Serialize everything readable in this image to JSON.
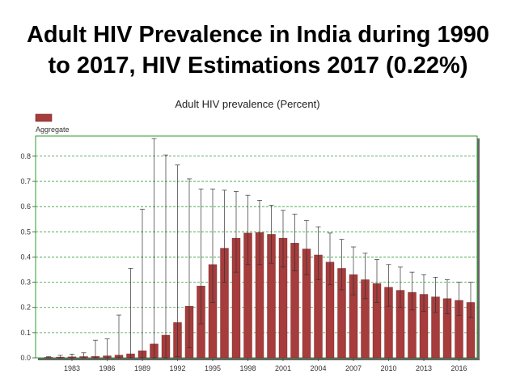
{
  "slide": {
    "title_line1": "Adult HIV Prevalence in India during 1990",
    "title_line2": "to 2017, HIV Estimations 2017 (0.22%)"
  },
  "chart_data": {
    "type": "bar",
    "title": "Adult HIV prevalence (Percent)",
    "xlabel": "",
    "ylabel": "",
    "ylim": [
      0,
      0.88
    ],
    "y_ticks": [
      0.0,
      0.1,
      0.2,
      0.3,
      0.4,
      0.5,
      0.6,
      0.7,
      0.8
    ],
    "x_tick_labels": [
      "1983",
      "1986",
      "1989",
      "1992",
      "1995",
      "1998",
      "2001",
      "2004",
      "2007",
      "2010",
      "2013",
      "2016"
    ],
    "grid": true,
    "error_bars": true,
    "legend": {
      "placement": "top-left",
      "entries": [
        "Aggregate"
      ]
    },
    "colors": {
      "bar": "#A63C3C",
      "grid": "#3CA03C",
      "frame": "#2E9A2E",
      "shadow": "#666666"
    },
    "categories": [
      "1981",
      "1982",
      "1983",
      "1984",
      "1985",
      "1986",
      "1987",
      "1988",
      "1989",
      "1990",
      "1991",
      "1992",
      "1993",
      "1994",
      "1995",
      "1996",
      "1997",
      "1998",
      "1999",
      "2000",
      "2001",
      "2002",
      "2003",
      "2004",
      "2005",
      "2006",
      "2007",
      "2008",
      "2009",
      "2010",
      "2011",
      "2012",
      "2013",
      "2014",
      "2015",
      "2016",
      "2017"
    ],
    "series": [
      {
        "name": "Aggregate",
        "values": [
          0.002,
          0.003,
          0.004,
          0.005,
          0.006,
          0.008,
          0.011,
          0.016,
          0.028,
          0.055,
          0.09,
          0.14,
          0.205,
          0.285,
          0.37,
          0.435,
          0.475,
          0.495,
          0.497,
          0.49,
          0.475,
          0.455,
          0.432,
          0.408,
          0.38,
          0.355,
          0.33,
          0.31,
          0.295,
          0.28,
          0.268,
          0.26,
          0.252,
          0.242,
          0.235,
          0.228,
          0.22
        ],
        "lower": [
          0.0,
          0.0,
          0.0,
          0.0,
          0.0,
          0.0,
          0.0,
          0.0,
          0.0,
          0.0,
          0.0,
          0.005,
          0.04,
          0.135,
          0.22,
          0.3,
          0.34,
          0.37,
          0.37,
          0.375,
          0.36,
          0.345,
          0.33,
          0.31,
          0.29,
          0.27,
          0.25,
          0.235,
          0.22,
          0.205,
          0.2,
          0.19,
          0.185,
          0.18,
          0.175,
          0.168,
          0.16
        ],
        "upper": [
          0.005,
          0.01,
          0.015,
          0.02,
          0.07,
          0.075,
          0.17,
          0.355,
          0.59,
          0.87,
          0.805,
          0.765,
          0.71,
          0.67,
          0.67,
          0.665,
          0.66,
          0.645,
          0.625,
          0.605,
          0.585,
          0.57,
          0.545,
          0.52,
          0.495,
          0.47,
          0.44,
          0.415,
          0.39,
          0.37,
          0.36,
          0.34,
          0.33,
          0.32,
          0.31,
          0.3,
          0.3
        ]
      }
    ]
  }
}
